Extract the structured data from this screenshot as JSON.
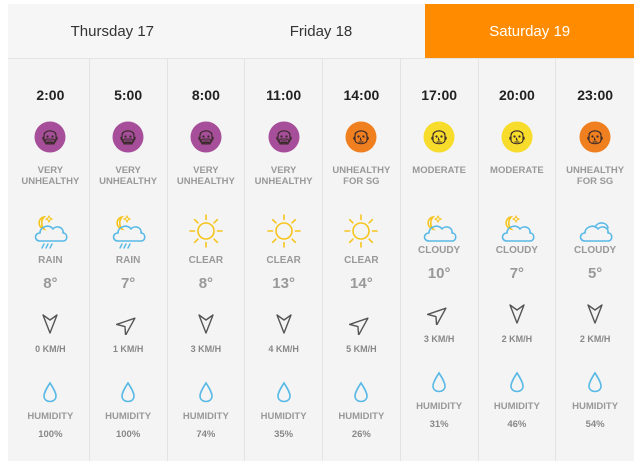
{
  "tabs": [
    {
      "label": "Thursday 17",
      "active": false
    },
    {
      "label": "Friday 18",
      "active": false
    },
    {
      "label": "Saturday 19",
      "active": true
    }
  ],
  "colors": {
    "very_unhealthy": "#a64e99",
    "unhealthy_sg": "#f07f1f",
    "moderate": "#f7dc2c",
    "accent": "#ff8c00",
    "icon_blue": "#58b9e6",
    "sun": "#f6c41c"
  },
  "hours": [
    {
      "time": "2:00",
      "aqi": [
        "VERY",
        "UNHEALTHY"
      ],
      "aqi_level": "very_unhealthy",
      "icon": "partly-cloudy-night-rain-icon",
      "condition": "RAIN",
      "temp": "8°",
      "wind_icon": "wind-arrow-south-icon",
      "wind": "0 KM/H",
      "humidity_label": "HUMIDITY",
      "humidity": "100%"
    },
    {
      "time": "5:00",
      "aqi": [
        "VERY",
        "UNHEALTHY"
      ],
      "aqi_level": "very_unhealthy",
      "icon": "partly-cloudy-night-rain-icon",
      "condition": "RAIN",
      "temp": "7°",
      "wind_icon": "wind-arrow-northeast-icon",
      "wind": "1 KM/H",
      "humidity_label": "HUMIDITY",
      "humidity": "100%"
    },
    {
      "time": "8:00",
      "aqi": [
        "VERY",
        "UNHEALTHY"
      ],
      "aqi_level": "very_unhealthy",
      "icon": "sun-icon",
      "condition": "CLEAR",
      "temp": "8°",
      "wind_icon": "wind-arrow-south-icon",
      "wind": "3 KM/H",
      "humidity_label": "HUMIDITY",
      "humidity": "74%"
    },
    {
      "time": "11:00",
      "aqi": [
        "VERY",
        "UNHEALTHY"
      ],
      "aqi_level": "very_unhealthy",
      "icon": "sun-icon",
      "condition": "CLEAR",
      "temp": "13°",
      "wind_icon": "wind-arrow-south-icon",
      "wind": "4 KM/H",
      "humidity_label": "HUMIDITY",
      "humidity": "35%"
    },
    {
      "time": "14:00",
      "aqi": [
        "UNHEALTHY",
        "FOR SG"
      ],
      "aqi_level": "unhealthy_sg",
      "icon": "sun-icon",
      "condition": "CLEAR",
      "temp": "14°",
      "wind_icon": "wind-arrow-northeast-icon",
      "wind": "5 KM/H",
      "humidity_label": "HUMIDITY",
      "humidity": "26%"
    },
    {
      "time": "17:00",
      "aqi": [
        "MODERATE",
        ""
      ],
      "aqi_level": "moderate",
      "icon": "partly-cloudy-night-icon",
      "condition": "CLOUDY",
      "temp": "10°",
      "wind_icon": "wind-arrow-northeast-icon",
      "wind": "3 KM/H",
      "humidity_label": "HUMIDITY",
      "humidity": "31%"
    },
    {
      "time": "20:00",
      "aqi": [
        "MODERATE",
        ""
      ],
      "aqi_level": "moderate",
      "icon": "partly-cloudy-night-icon",
      "condition": "CLOUDY",
      "temp": "7°",
      "wind_icon": "wind-arrow-south-icon",
      "wind": "2 KM/H",
      "humidity_label": "HUMIDITY",
      "humidity": "46%"
    },
    {
      "time": "23:00",
      "aqi": [
        "UNHEALTHY",
        "FOR SG"
      ],
      "aqi_level": "unhealthy_sg",
      "icon": "cloud-icon",
      "condition": "CLOUDY",
      "temp": "5°",
      "wind_icon": "wind-arrow-south-icon",
      "wind": "2 KM/H",
      "humidity_label": "HUMIDITY",
      "humidity": "54%"
    }
  ]
}
